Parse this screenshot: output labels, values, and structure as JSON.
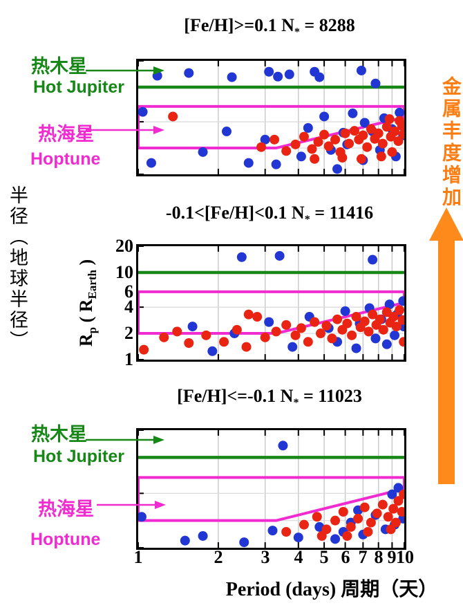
{
  "figure": {
    "outer_y_label": "半径（地球半径）",
    "x_axis_label": "Period (days) 周期（天）",
    "right_label": "金属丰度增加",
    "annotations": {
      "hot_jupiter_zh": "热木星",
      "hot_jupiter_en": "Hot Jupiter",
      "hoptune_zh": "热海星",
      "hoptune_en": "Hoptune"
    },
    "inner_y_label": {
      "part1": "R",
      "sub1": "p",
      "part2": " ( R",
      "sub2": "Earth",
      "part3": " )"
    }
  },
  "chart_data": {
    "type": "scatter",
    "axes": {
      "x": {
        "label": "Period (days) 周期（天）",
        "scale": "log",
        "range": [
          1,
          10
        ],
        "ticks": [
          1,
          2,
          3,
          4,
          5,
          6,
          7,
          8,
          9,
          10
        ],
        "tick_labels": [
          "1",
          "2",
          "3",
          "4",
          "5",
          "6",
          "7",
          "8",
          "9",
          "10"
        ]
      },
      "y": {
        "label": "Rp (REarth)",
        "scale": "log",
        "range": [
          1,
          20
        ],
        "ticks": [
          20,
          10,
          6,
          4,
          2,
          1
        ],
        "tick_labels": [
          "20",
          "10",
          "6",
          "4",
          "2",
          "1"
        ]
      }
    },
    "grid": {
      "x": [
        2,
        3,
        4,
        5,
        6,
        7,
        8,
        9
      ],
      "y": [
        2,
        4,
        6,
        10
      ],
      "on": true
    },
    "colors": {
      "hot_jupiter_line": "#178717",
      "hoptune_outline": "#f02bd0",
      "metallicity_arrow": "#fd8a1a",
      "blue_point": "#2236d4",
      "red_point": "#ea2413",
      "grid": "#c9c9c9"
    },
    "hot_jupiter_line_radius": 10,
    "hoptune_polygon": [
      [
        1,
        6
      ],
      [
        10,
        6
      ],
      [
        10,
        4.5
      ],
      [
        3.3,
        2
      ],
      [
        1,
        2
      ]
    ],
    "panels": [
      {
        "title": "[Fe/H]>=0.1 N* = 8288",
        "title_main": "[Fe/H]>=0.1 N",
        "title_sub": "*",
        "title_tail": " = 8288",
        "n_stars": 8288,
        "series": [
          {
            "name": "blue",
            "color": "#2236d4",
            "points": [
              [
                1.18,
                13.5
              ],
              [
                1.55,
                14.5
              ],
              [
                2.25,
                13
              ],
              [
                3.1,
                15
              ],
              [
                3.35,
                13.2
              ],
              [
                3.7,
                14
              ],
              [
                4.6,
                15
              ],
              [
                4.8,
                13
              ],
              [
                6.9,
                15.5
              ],
              [
                7.8,
                11
              ],
              [
                1.04,
                5.2
              ],
              [
                2.15,
                3.1
              ],
              [
                3.0,
                2.5
              ],
              [
                4.35,
                3.4
              ],
              [
                5.0,
                4.6
              ],
              [
                5.9,
                3.0
              ],
              [
                6.4,
                5.0
              ],
              [
                7.1,
                3.9
              ],
              [
                7.6,
                3.1
              ],
              [
                8.4,
                4.4
              ],
              [
                9.0,
                3.3
              ],
              [
                9.6,
                5.1
              ],
              [
                9.9,
                2.8
              ],
              [
                1.12,
                1.35
              ],
              [
                1.75,
                1.8
              ],
              [
                2.6,
                1.35
              ],
              [
                3.3,
                1.3
              ],
              [
                4.1,
                1.6
              ],
              [
                5.3,
                1.9
              ],
              [
                5.6,
                1.15
              ],
              [
                6.1,
                2.2
              ],
              [
                7.0,
                1.45
              ],
              [
                8.1,
                1.9
              ],
              [
                9.3,
                1.6
              ]
            ]
          },
          {
            "name": "red",
            "color": "#ea2413",
            "points": [
              [
                1.35,
                4.6
              ],
              [
                2.9,
                2.05
              ],
              [
                3.25,
                2.5
              ],
              [
                3.6,
                1.85
              ],
              [
                3.9,
                2.2
              ],
              [
                4.2,
                2.7
              ],
              [
                4.5,
                1.95
              ],
              [
                4.75,
                2.35
              ],
              [
                5.0,
                2.85
              ],
              [
                5.2,
                2.1
              ],
              [
                5.5,
                2.5
              ],
              [
                5.75,
                1.8
              ],
              [
                6.0,
                2.95
              ],
              [
                6.2,
                2.25
              ],
              [
                6.5,
                3.15
              ],
              [
                6.75,
                2.5
              ],
              [
                7.0,
                2.8
              ],
              [
                7.25,
                2.05
              ],
              [
                7.5,
                3.3
              ],
              [
                7.75,
                2.55
              ],
              [
                8.0,
                2.95
              ],
              [
                8.3,
                2.25
              ],
              [
                8.6,
                3.5
              ],
              [
                8.9,
                2.7
              ],
              [
                9.2,
                3.1
              ],
              [
                9.5,
                2.4
              ],
              [
                9.8,
                3.6
              ],
              [
                9.95,
                2.9
              ],
              [
                8.2,
                1.6
              ],
              [
                9.0,
                1.8
              ],
              [
                6.9,
                1.5
              ],
              [
                5.85,
                1.55
              ],
              [
                4.6,
                1.5
              ],
              [
                9.6,
                4.1
              ],
              [
                8.8,
                4.3
              ]
            ]
          }
        ]
      },
      {
        "title": "-0.1<[Fe/H]<0.1 N* = 11416",
        "title_main": "-0.1<[Fe/H]<0.1 N",
        "title_sub": "*",
        "title_tail": " = 11416",
        "n_stars": 11416,
        "series": [
          {
            "name": "blue",
            "color": "#2236d4",
            "points": [
              [
                2.45,
                15
              ],
              [
                3.4,
                15.5
              ],
              [
                7.6,
                14
              ],
              [
                1.6,
                2.4
              ],
              [
                2.3,
                2.0
              ],
              [
                3.1,
                2.7
              ],
              [
                4.4,
                3.1
              ],
              [
                5.2,
                2.3
              ],
              [
                6.0,
                3.6
              ],
              [
                6.8,
                2.6
              ],
              [
                7.4,
                3.9
              ],
              [
                8.2,
                2.9
              ],
              [
                8.8,
                4.3
              ],
              [
                9.4,
                3.3
              ],
              [
                9.9,
                4.7
              ],
              [
                5.6,
                1.6
              ],
              [
                6.6,
                1.35
              ],
              [
                7.8,
                1.75
              ],
              [
                8.6,
                1.5
              ],
              [
                9.2,
                1.9
              ],
              [
                3.8,
                1.4
              ],
              [
                1.9,
                1.25
              ],
              [
                9.95,
                2.4
              ]
            ]
          },
          {
            "name": "red",
            "color": "#ea2413",
            "points": [
              [
                1.05,
                1.3
              ],
              [
                1.25,
                1.8
              ],
              [
                1.4,
                2.1
              ],
              [
                1.55,
                1.55
              ],
              [
                1.8,
                1.9
              ],
              [
                2.1,
                1.6
              ],
              [
                2.35,
                2.2
              ],
              [
                2.6,
                3.3
              ],
              [
                2.8,
                3.1
              ],
              [
                2.55,
                1.4
              ],
              [
                3.0,
                1.8
              ],
              [
                3.3,
                2.1
              ],
              [
                3.6,
                2.5
              ],
              [
                3.9,
                1.9
              ],
              [
                4.1,
                2.3
              ],
              [
                4.35,
                1.6
              ],
              [
                4.6,
                2.7
              ],
              [
                4.85,
                2.0
              ],
              [
                5.1,
                2.45
              ],
              [
                5.35,
                1.75
              ],
              [
                5.6,
                2.9
              ],
              [
                5.85,
                2.2
              ],
              [
                6.1,
                2.6
              ],
              [
                6.35,
                1.9
              ],
              [
                6.6,
                3.1
              ],
              [
                6.85,
                2.35
              ],
              [
                7.1,
                2.75
              ],
              [
                7.35,
                2.1
              ],
              [
                7.6,
                3.3
              ],
              [
                7.85,
                2.5
              ],
              [
                8.1,
                2.9
              ],
              [
                8.35,
                2.2
              ],
              [
                8.6,
                3.5
              ],
              [
                8.85,
                2.65
              ],
              [
                9.1,
                3.1
              ],
              [
                9.35,
                2.4
              ],
              [
                9.6,
                3.7
              ],
              [
                9.85,
                2.85
              ],
              [
                9.95,
                1.6
              ]
            ]
          }
        ]
      },
      {
        "title": "[Fe/H]<=-0.1 N* = 11023",
        "title_main": "[Fe/H]<=-0.1 N",
        "title_sub": "*",
        "title_tail": " = 11023",
        "n_stars": 11023,
        "series": [
          {
            "name": "blue",
            "color": "#2236d4",
            "points": [
              [
                3.5,
                13.5
              ],
              [
                1.03,
                2.2
              ],
              [
                1.5,
                1.2
              ],
              [
                1.75,
                1.35
              ],
              [
                2.5,
                1.15
              ],
              [
                3.2,
                1.55
              ],
              [
                4.0,
                1.3
              ],
              [
                4.8,
                1.7
              ],
              [
                5.5,
                1.25
              ],
              [
                6.3,
                1.9
              ],
              [
                7.0,
                1.4
              ],
              [
                7.8,
                2.3
              ],
              [
                8.5,
                1.6
              ],
              [
                9.0,
                3.9
              ],
              [
                9.5,
                4.6
              ],
              [
                9.2,
                1.8
              ],
              [
                6.7,
                2.6
              ],
              [
                5.9,
                1.5
              ],
              [
                9.9,
                2.1
              ]
            ]
          },
          {
            "name": "red",
            "color": "#ea2413",
            "points": [
              [
                3.6,
                1.5
              ],
              [
                4.2,
                1.8
              ],
              [
                4.7,
                2.2
              ],
              [
                5.1,
                1.6
              ],
              [
                5.5,
                2.0
              ],
              [
                5.9,
                2.5
              ],
              [
                6.3,
                1.7
              ],
              [
                6.7,
                2.1
              ],
              [
                7.1,
                2.8
              ],
              [
                7.5,
                1.9
              ],
              [
                7.9,
                2.4
              ],
              [
                8.3,
                3.0
              ],
              [
                8.7,
                2.2
              ],
              [
                9.1,
                2.7
              ],
              [
                9.5,
                3.3
              ],
              [
                9.8,
                2.5
              ],
              [
                9.95,
                3.9
              ],
              [
                8.9,
                1.6
              ],
              [
                7.3,
                1.5
              ],
              [
                6.1,
                1.35
              ],
              [
                9.3,
                1.9
              ],
              [
                4.9,
                1.35
              ]
            ]
          }
        ]
      }
    ]
  }
}
